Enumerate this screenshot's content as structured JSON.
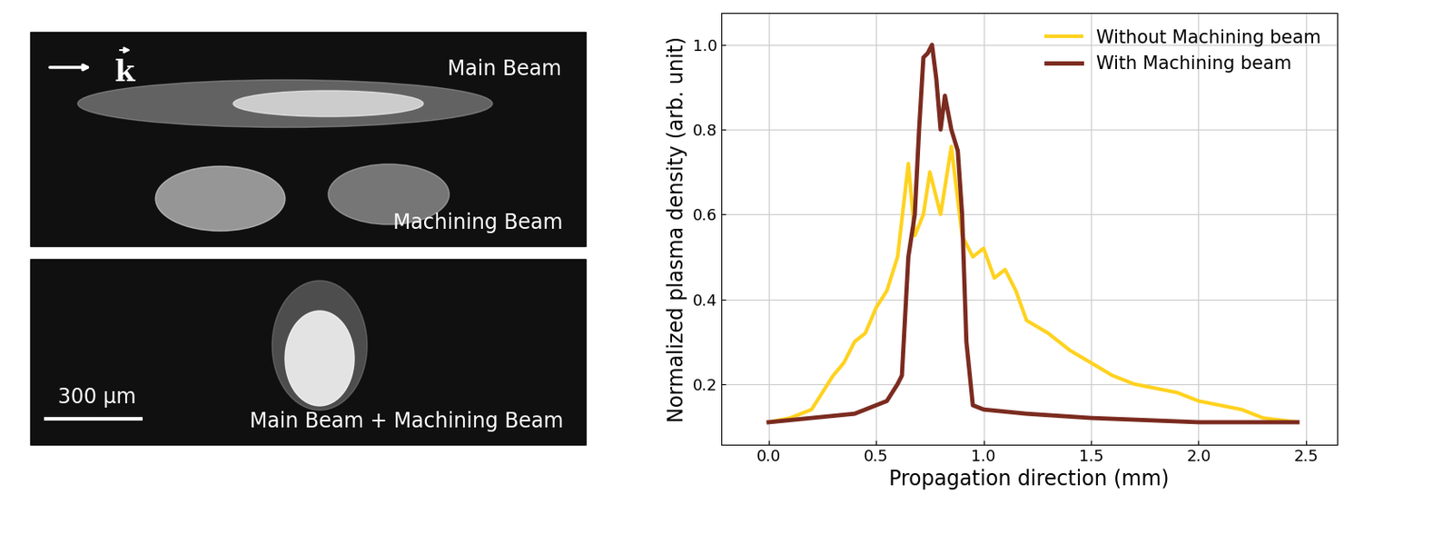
{
  "chart_data": {
    "type": "line",
    "x_label": "Propagation direction (mm)",
    "y_label": "Normalized plasma density (arb. unit)",
    "xlim": [
      -0.22,
      2.645
    ],
    "xticks": [
      0.0,
      0.5,
      1.0,
      1.5,
      2.0,
      2.5
    ],
    "ylim": [
      0.057,
      1.075
    ],
    "yticks": [
      0.2,
      0.4,
      0.6,
      0.8,
      1.0
    ],
    "grid": true,
    "legend": "upper right",
    "series": [
      {
        "name": "Without Machining beam",
        "color": "#FFD21F",
        "x": [
          0.0,
          0.1,
          0.2,
          0.3,
          0.35,
          0.4,
          0.45,
          0.5,
          0.55,
          0.6,
          0.65,
          0.68,
          0.72,
          0.75,
          0.8,
          0.85,
          0.9,
          0.95,
          1.0,
          1.05,
          1.1,
          1.15,
          1.2,
          1.3,
          1.4,
          1.5,
          1.6,
          1.7,
          1.8,
          1.9,
          2.0,
          2.1,
          2.2,
          2.3,
          2.46
        ],
        "values": [
          0.11,
          0.12,
          0.14,
          0.22,
          0.25,
          0.3,
          0.32,
          0.38,
          0.42,
          0.5,
          0.72,
          0.55,
          0.6,
          0.7,
          0.6,
          0.76,
          0.55,
          0.5,
          0.52,
          0.45,
          0.47,
          0.42,
          0.35,
          0.32,
          0.28,
          0.25,
          0.22,
          0.2,
          0.19,
          0.18,
          0.16,
          0.15,
          0.14,
          0.12,
          0.11
        ]
      },
      {
        "name": "With Machining beam",
        "color": "#7B2B1F",
        "x": [
          0.0,
          0.2,
          0.4,
          0.55,
          0.6,
          0.62,
          0.65,
          0.68,
          0.7,
          0.72,
          0.74,
          0.76,
          0.78,
          0.8,
          0.82,
          0.85,
          0.88,
          0.9,
          0.92,
          0.95,
          1.0,
          1.2,
          1.5,
          2.0,
          2.46
        ],
        "values": [
          0.11,
          0.12,
          0.13,
          0.16,
          0.2,
          0.22,
          0.5,
          0.6,
          0.8,
          0.97,
          0.98,
          1.0,
          0.92,
          0.8,
          0.88,
          0.8,
          0.75,
          0.6,
          0.3,
          0.15,
          0.14,
          0.13,
          0.12,
          0.11,
          0.11
        ]
      }
    ]
  },
  "image_panel": {
    "wave_vector": "k",
    "top_labels": [
      "Main Beam",
      "Machining Beam"
    ],
    "bottom_label": "Main Beam + Machining Beam",
    "scale_bar": "300 µm"
  }
}
